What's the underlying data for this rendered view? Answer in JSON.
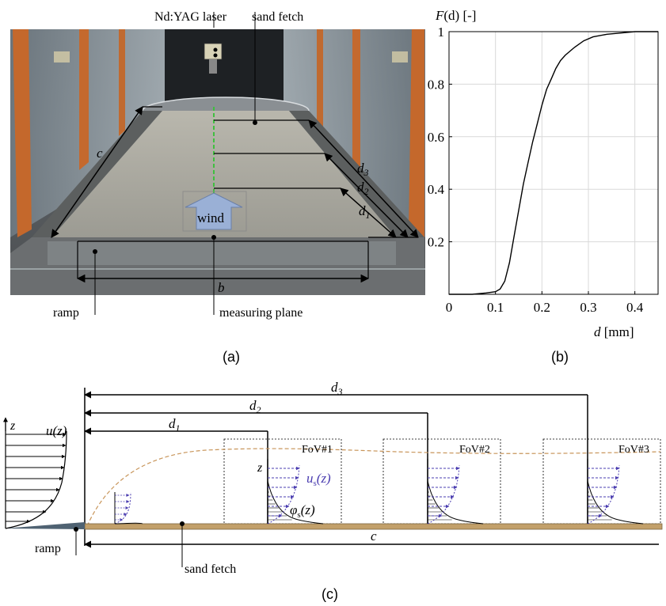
{
  "panel_a": {
    "caption": "(a)",
    "labels": {
      "laser": "Nd:YAG laser",
      "sand_fetch": "sand fetch",
      "ramp": "ramp",
      "measuring_plane": "measuring plane",
      "wind": "wind",
      "c": "c",
      "b": "b",
      "d1": "d",
      "d1_sub": "1",
      "d2": "d",
      "d2_sub": "2",
      "d3": "d",
      "d3_sub": "3"
    }
  },
  "panel_b": {
    "caption": "(b)",
    "ylabel": "F(d) [-]",
    "ylabel_func": "F",
    "ylabel_arg": "(d) [-]",
    "xlabel_var": "d",
    "xlabel_unit": " [mm]"
  },
  "chart_data": {
    "type": "line",
    "xlabel": "d [mm]",
    "ylabel": "F(d) [-]",
    "xlim": [
      0,
      0.45
    ],
    "ylim": [
      0,
      1
    ],
    "xticks": [
      "0",
      "0.1",
      "0.2",
      "0.3",
      "0.4"
    ],
    "xtick_values": [
      0,
      0.1,
      0.2,
      0.3,
      0.4
    ],
    "yticks": [
      "0.2",
      "0.4",
      "0.6",
      "0.8",
      "1"
    ],
    "ytick_values": [
      0.2,
      0.4,
      0.6,
      0.8,
      1.0
    ],
    "grid": true,
    "series": [
      {
        "color": "#000000",
        "x": [
          0.05,
          0.08,
          0.1,
          0.11,
          0.12,
          0.13,
          0.14,
          0.15,
          0.16,
          0.17,
          0.18,
          0.19,
          0.2,
          0.21,
          0.22,
          0.23,
          0.24,
          0.25,
          0.27,
          0.29,
          0.31,
          0.34,
          0.37,
          0.4,
          0.43,
          0.45
        ],
        "y": [
          0.0,
          0.005,
          0.01,
          0.02,
          0.05,
          0.12,
          0.22,
          0.32,
          0.42,
          0.5,
          0.58,
          0.65,
          0.72,
          0.78,
          0.82,
          0.86,
          0.89,
          0.91,
          0.94,
          0.965,
          0.98,
          0.99,
          0.995,
          1.0,
          1.0,
          1.0
        ]
      }
    ]
  },
  "panel_c": {
    "caption": "(c)",
    "labels": {
      "u_z": "u(z)",
      "z_axis": "z",
      "z_label": "z",
      "us_z": "u",
      "us_sub": "s",
      "us_arg": "(z)",
      "phi": "φ",
      "phi_sub": "s",
      "phi_arg": "(z)",
      "fov1": "FoV#1",
      "fov2": "FoV#2",
      "fov3": "FoV#3",
      "ramp": "ramp",
      "sand_fetch": "sand fetch",
      "c": "c",
      "d1": "d",
      "d1_sub": "1",
      "d2": "d",
      "d2_sub": "2",
      "d3": "d",
      "d3_sub": "3"
    }
  },
  "colors": {
    "sand": "#c2a06a",
    "profile_purple": "#4a3cb0",
    "dashed_tan": "#c8955a",
    "laser_green": "#3fbf3f",
    "grid": "#d9d9d9"
  }
}
